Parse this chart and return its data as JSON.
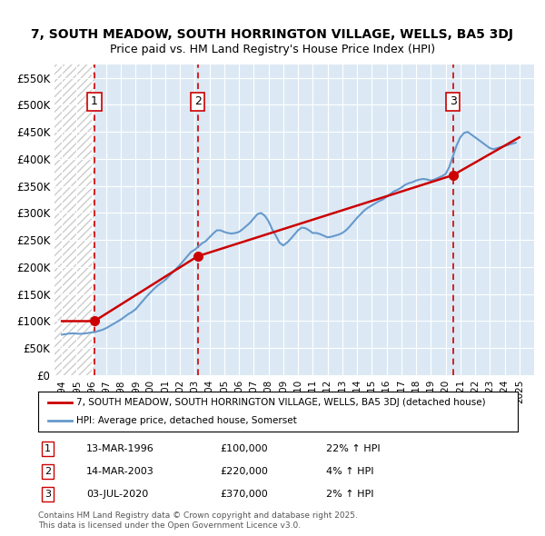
{
  "title_line1": "7, SOUTH MEADOW, SOUTH HORRINGTON VILLAGE, WELLS, BA5 3DJ",
  "title_line2": "Price paid vs. HM Land Registry's House Price Index (HPI)",
  "ylabel": "",
  "xlabel": "",
  "background_color": "#dce9f5",
  "hatch_color": "#c0c0c0",
  "grid_color": "#ffffff",
  "sale_color": "#cc0000",
  "hpi_color": "#6699cc",
  "dashed_line_color": "#cc0000",
  "sale_label": "7, SOUTH MEADOW, SOUTH HORRINGTON VILLAGE, WELLS, BA5 3DJ (detached house)",
  "hpi_label": "HPI: Average price, detached house, Somerset",
  "sales": [
    {
      "num": 1,
      "date_x": 1996.2,
      "price": 100000,
      "label": "13-MAR-1996",
      "pct": "22%",
      "dir": "↑"
    },
    {
      "num": 2,
      "date_x": 2003.2,
      "price": 220000,
      "label": "14-MAR-2003",
      "pct": "4%",
      "dir": "↑"
    },
    {
      "num": 3,
      "date_x": 2020.5,
      "price": 370000,
      "label": "03-JUL-2020",
      "pct": "2%",
      "dir": "↑"
    }
  ],
  "ylim": [
    0,
    575000
  ],
  "xlim": [
    1993.5,
    2026
  ],
  "yticks": [
    0,
    50000,
    100000,
    150000,
    200000,
    250000,
    300000,
    350000,
    400000,
    450000,
    500000,
    550000
  ],
  "ytick_labels": [
    "£0",
    "£50K",
    "£100K",
    "£150K",
    "£200K",
    "£250K",
    "£300K",
    "£350K",
    "£400K",
    "£450K",
    "£500K",
    "£550K"
  ],
  "xticks": [
    1994,
    1995,
    1996,
    1997,
    1998,
    1999,
    2000,
    2001,
    2002,
    2003,
    2004,
    2005,
    2006,
    2007,
    2008,
    2009,
    2010,
    2011,
    2012,
    2013,
    2014,
    2015,
    2016,
    2017,
    2018,
    2019,
    2020,
    2021,
    2022,
    2023,
    2024,
    2025
  ],
  "footer": "Contains HM Land Registry data © Crown copyright and database right 2025.\nThis data is licensed under the Open Government Licence v3.0.",
  "hpi_data_x": [
    1994.0,
    1994.25,
    1994.5,
    1994.75,
    1995.0,
    1995.25,
    1995.5,
    1995.75,
    1996.0,
    1996.25,
    1996.5,
    1996.75,
    1997.0,
    1997.25,
    1997.5,
    1997.75,
    1998.0,
    1998.25,
    1998.5,
    1998.75,
    1999.0,
    1999.25,
    1999.5,
    1999.75,
    2000.0,
    2000.25,
    2000.5,
    2000.75,
    2001.0,
    2001.25,
    2001.5,
    2001.75,
    2002.0,
    2002.25,
    2002.5,
    2002.75,
    2003.0,
    2003.25,
    2003.5,
    2003.75,
    2004.0,
    2004.25,
    2004.5,
    2004.75,
    2005.0,
    2005.25,
    2005.5,
    2005.75,
    2006.0,
    2006.25,
    2006.5,
    2006.75,
    2007.0,
    2007.25,
    2007.5,
    2007.75,
    2008.0,
    2008.25,
    2008.5,
    2008.75,
    2009.0,
    2009.25,
    2009.5,
    2009.75,
    2010.0,
    2010.25,
    2010.5,
    2010.75,
    2011.0,
    2011.25,
    2011.5,
    2011.75,
    2012.0,
    2012.25,
    2012.5,
    2012.75,
    2013.0,
    2013.25,
    2013.5,
    2013.75,
    2014.0,
    2014.25,
    2014.5,
    2014.75,
    2015.0,
    2015.25,
    2015.5,
    2015.75,
    2016.0,
    2016.25,
    2016.5,
    2016.75,
    2017.0,
    2017.25,
    2017.5,
    2017.75,
    2018.0,
    2018.25,
    2018.5,
    2018.75,
    2019.0,
    2019.25,
    2019.5,
    2019.75,
    2020.0,
    2020.25,
    2020.5,
    2020.75,
    2021.0,
    2021.25,
    2021.5,
    2021.75,
    2022.0,
    2022.25,
    2022.5,
    2022.75,
    2023.0,
    2023.25,
    2023.5,
    2023.75,
    2024.0,
    2024.25,
    2024.5,
    2024.75
  ],
  "hpi_data_y": [
    75000,
    76000,
    77000,
    77500,
    77000,
    76500,
    77000,
    78000,
    79000,
    80000,
    82000,
    84000,
    87000,
    91000,
    95000,
    99000,
    103000,
    108000,
    113000,
    117000,
    122000,
    130000,
    138000,
    146000,
    153000,
    160000,
    166000,
    171000,
    176000,
    183000,
    190000,
    197000,
    204000,
    212000,
    220000,
    228000,
    232000,
    238000,
    244000,
    248000,
    255000,
    262000,
    268000,
    268000,
    265000,
    263000,
    262000,
    263000,
    265000,
    270000,
    276000,
    282000,
    290000,
    298000,
    300000,
    295000,
    285000,
    270000,
    258000,
    245000,
    240000,
    245000,
    252000,
    260000,
    268000,
    273000,
    272000,
    268000,
    263000,
    263000,
    261000,
    258000,
    255000,
    256000,
    258000,
    260000,
    263000,
    268000,
    275000,
    283000,
    291000,
    298000,
    305000,
    310000,
    314000,
    318000,
    322000,
    325000,
    330000,
    335000,
    340000,
    343000,
    347000,
    352000,
    355000,
    357000,
    360000,
    362000,
    363000,
    362000,
    360000,
    362000,
    365000,
    368000,
    372000,
    385000,
    405000,
    425000,
    440000,
    448000,
    450000,
    445000,
    440000,
    435000,
    430000,
    425000,
    420000,
    418000,
    420000,
    422000,
    424000,
    426000,
    428000,
    430000
  ],
  "sale_data_x": [
    1994.0,
    1996.2,
    1996.2,
    2003.2,
    2003.2,
    2020.5,
    2020.5,
    2025.0
  ],
  "sale_data_y": [
    100000,
    100000,
    100000,
    220000,
    220000,
    370000,
    370000,
    440000
  ]
}
